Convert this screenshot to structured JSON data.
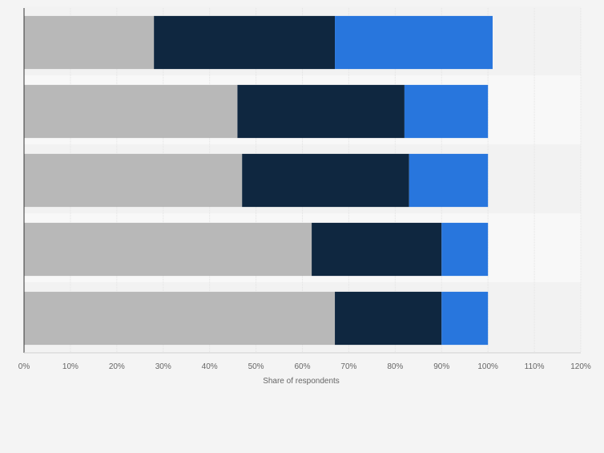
{
  "chart_data": {
    "type": "bar",
    "orientation": "horizontal",
    "stacked": true,
    "categories": [
      "",
      "",
      "",
      "",
      ""
    ],
    "series": [
      {
        "color": "#b8b8b8",
        "values": [
          28,
          46,
          47,
          62,
          67
        ]
      },
      {
        "color": "#0f2740",
        "values": [
          39,
          36,
          36,
          28,
          23
        ]
      },
      {
        "color": "#2876dd",
        "values": [
          34,
          18,
          17,
          10,
          10
        ]
      }
    ],
    "xlim": [
      0,
      120
    ],
    "xticks": [
      {
        "value": 0,
        "label": "0%"
      },
      {
        "value": 10,
        "label": "10%"
      },
      {
        "value": 20,
        "label": "20%"
      },
      {
        "value": 30,
        "label": "30%"
      },
      {
        "value": 40,
        "label": "40%"
      },
      {
        "value": 50,
        "label": "50%"
      },
      {
        "value": 60,
        "label": "60%"
      },
      {
        "value": 70,
        "label": "70%"
      },
      {
        "value": 80,
        "label": "80%"
      },
      {
        "value": 90,
        "label": "90%"
      },
      {
        "value": 100,
        "label": "100%"
      },
      {
        "value": 110,
        "label": "110%"
      },
      {
        "value": 120,
        "label": "120%"
      }
    ],
    "xlabel": "Share of respondents",
    "ylabel": "",
    "grid": true,
    "legend": "none"
  }
}
